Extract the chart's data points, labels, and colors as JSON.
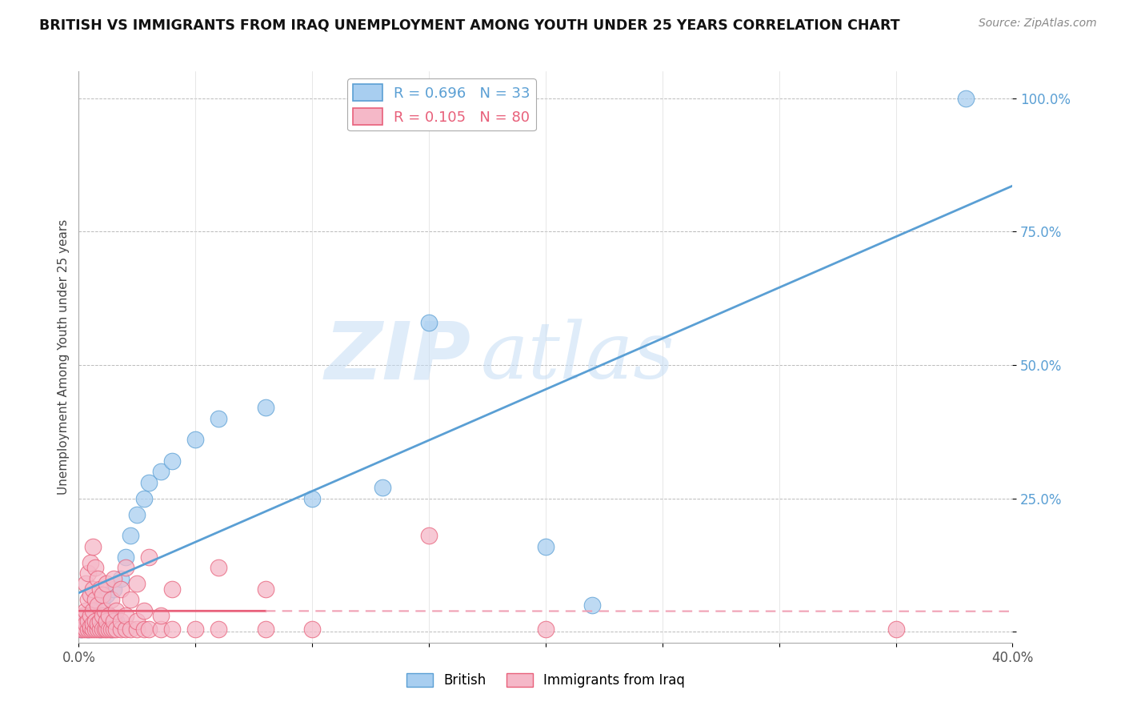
{
  "title": "BRITISH VS IMMIGRANTS FROM IRAQ UNEMPLOYMENT AMONG YOUTH UNDER 25 YEARS CORRELATION CHART",
  "source": "Source: ZipAtlas.com",
  "ylabel": "Unemployment Among Youth under 25 years",
  "xlim": [
    0.0,
    0.4
  ],
  "ylim": [
    -0.02,
    1.05
  ],
  "yticks": [
    0.0,
    0.25,
    0.5,
    0.75,
    1.0
  ],
  "ytick_labels": [
    "",
    "25.0%",
    "50.0%",
    "75.0%",
    "100.0%"
  ],
  "xticks": [
    0.0,
    0.05,
    0.1,
    0.15,
    0.2,
    0.25,
    0.3,
    0.35,
    0.4
  ],
  "xtick_labels": [
    "0.0%",
    "",
    "",
    "",
    "",
    "",
    "",
    "",
    "40.0%"
  ],
  "british_R": 0.696,
  "british_N": 33,
  "iraq_R": 0.105,
  "iraq_N": 80,
  "british_color": "#a8cef0",
  "iraq_color": "#f5b8c8",
  "british_line_color": "#5a9fd4",
  "iraq_line_solid_color": "#e8607a",
  "iraq_line_dash_color": "#f0a0b4",
  "background_color": "#ffffff",
  "watermark_zip": "ZIP",
  "watermark_atlas": "atlas",
  "british_points": [
    [
      0.001,
      0.005
    ],
    [
      0.002,
      0.01
    ],
    [
      0.003,
      0.02
    ],
    [
      0.004,
      0.005
    ],
    [
      0.005,
      0.03
    ],
    [
      0.006,
      0.01
    ],
    [
      0.007,
      0.04
    ],
    [
      0.008,
      0.02
    ],
    [
      0.009,
      0.005
    ],
    [
      0.01,
      0.06
    ],
    [
      0.011,
      0.01
    ],
    [
      0.012,
      0.07
    ],
    [
      0.013,
      0.03
    ],
    [
      0.014,
      0.005
    ],
    [
      0.015,
      0.08
    ],
    [
      0.016,
      0.02
    ],
    [
      0.018,
      0.1
    ],
    [
      0.02,
      0.14
    ],
    [
      0.022,
      0.18
    ],
    [
      0.025,
      0.22
    ],
    [
      0.028,
      0.25
    ],
    [
      0.03,
      0.28
    ],
    [
      0.035,
      0.3
    ],
    [
      0.04,
      0.32
    ],
    [
      0.05,
      0.36
    ],
    [
      0.06,
      0.4
    ],
    [
      0.08,
      0.42
    ],
    [
      0.1,
      0.25
    ],
    [
      0.13,
      0.27
    ],
    [
      0.15,
      0.58
    ],
    [
      0.2,
      0.16
    ],
    [
      0.22,
      0.05
    ],
    [
      0.38,
      1.0
    ]
  ],
  "iraq_points": [
    [
      0.001,
      0.005
    ],
    [
      0.001,
      0.01
    ],
    [
      0.001,
      0.02
    ],
    [
      0.002,
      0.005
    ],
    [
      0.002,
      0.01
    ],
    [
      0.002,
      0.03
    ],
    [
      0.003,
      0.005
    ],
    [
      0.003,
      0.015
    ],
    [
      0.003,
      0.04
    ],
    [
      0.003,
      0.09
    ],
    [
      0.004,
      0.005
    ],
    [
      0.004,
      0.02
    ],
    [
      0.004,
      0.06
    ],
    [
      0.004,
      0.11
    ],
    [
      0.005,
      0.005
    ],
    [
      0.005,
      0.01
    ],
    [
      0.005,
      0.03
    ],
    [
      0.005,
      0.07
    ],
    [
      0.005,
      0.13
    ],
    [
      0.006,
      0.005
    ],
    [
      0.006,
      0.015
    ],
    [
      0.006,
      0.04
    ],
    [
      0.006,
      0.08
    ],
    [
      0.006,
      0.16
    ],
    [
      0.007,
      0.005
    ],
    [
      0.007,
      0.02
    ],
    [
      0.007,
      0.06
    ],
    [
      0.007,
      0.12
    ],
    [
      0.008,
      0.005
    ],
    [
      0.008,
      0.015
    ],
    [
      0.008,
      0.05
    ],
    [
      0.008,
      0.1
    ],
    [
      0.009,
      0.005
    ],
    [
      0.009,
      0.02
    ],
    [
      0.009,
      0.08
    ],
    [
      0.01,
      0.005
    ],
    [
      0.01,
      0.03
    ],
    [
      0.01,
      0.07
    ],
    [
      0.011,
      0.005
    ],
    [
      0.011,
      0.04
    ],
    [
      0.012,
      0.005
    ],
    [
      0.012,
      0.02
    ],
    [
      0.012,
      0.09
    ],
    [
      0.013,
      0.005
    ],
    [
      0.013,
      0.03
    ],
    [
      0.014,
      0.005
    ],
    [
      0.014,
      0.06
    ],
    [
      0.015,
      0.005
    ],
    [
      0.015,
      0.02
    ],
    [
      0.015,
      0.1
    ],
    [
      0.016,
      0.005
    ],
    [
      0.016,
      0.04
    ],
    [
      0.018,
      0.005
    ],
    [
      0.018,
      0.02
    ],
    [
      0.018,
      0.08
    ],
    [
      0.02,
      0.005
    ],
    [
      0.02,
      0.03
    ],
    [
      0.02,
      0.12
    ],
    [
      0.022,
      0.005
    ],
    [
      0.022,
      0.06
    ],
    [
      0.025,
      0.005
    ],
    [
      0.025,
      0.02
    ],
    [
      0.025,
      0.09
    ],
    [
      0.028,
      0.005
    ],
    [
      0.028,
      0.04
    ],
    [
      0.03,
      0.005
    ],
    [
      0.03,
      0.14
    ],
    [
      0.035,
      0.005
    ],
    [
      0.035,
      0.03
    ],
    [
      0.04,
      0.005
    ],
    [
      0.04,
      0.08
    ],
    [
      0.05,
      0.005
    ],
    [
      0.06,
      0.005
    ],
    [
      0.06,
      0.12
    ],
    [
      0.08,
      0.005
    ],
    [
      0.08,
      0.08
    ],
    [
      0.1,
      0.005
    ],
    [
      0.15,
      0.18
    ],
    [
      0.2,
      0.005
    ],
    [
      0.35,
      0.005
    ]
  ]
}
